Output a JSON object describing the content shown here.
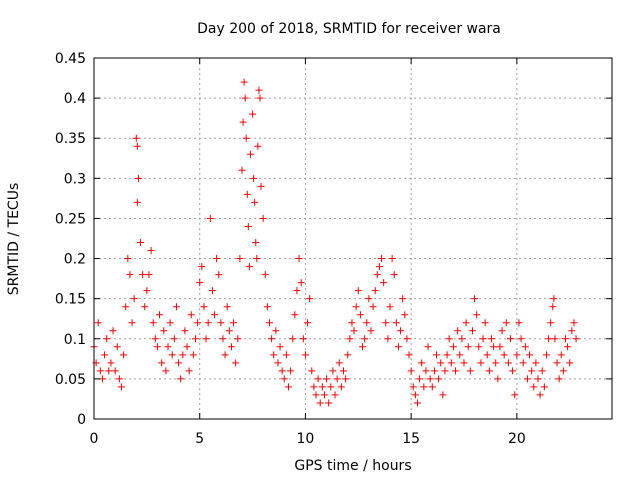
{
  "chart_data": {
    "type": "scatter",
    "title": "Day 200 of 2018, SRMTID for receiver wara",
    "xlabel": "GPS time / hours",
    "ylabel": "SRMTID / TECUs",
    "xlim": [
      0,
      24.5
    ],
    "ylim": [
      0,
      0.45
    ],
    "xticks": [
      0,
      5,
      10,
      15,
      20
    ],
    "xtick_labels": [
      "0",
      "5",
      "10",
      "15",
      "20"
    ],
    "yticks": [
      0,
      0.05,
      0.1,
      0.15,
      0.2,
      0.25,
      0.3,
      0.35,
      0.4,
      0.45
    ],
    "ytick_labels": [
      "0",
      "0.05",
      "0.1",
      "0.15",
      "0.2",
      "0.25",
      "0.3",
      "0.35",
      "0.4",
      "0.45"
    ],
    "grid": true,
    "marker": "plus",
    "color": "#ff0000",
    "series": [
      {
        "name": "SRMTID",
        "points": [
          [
            0.0,
            0.09
          ],
          [
            0.1,
            0.07
          ],
          [
            0.2,
            0.12
          ],
          [
            0.3,
            0.06
          ],
          [
            0.4,
            0.05
          ],
          [
            0.5,
            0.08
          ],
          [
            0.6,
            0.1
          ],
          [
            0.7,
            0.06
          ],
          [
            0.8,
            0.07
          ],
          [
            0.9,
            0.11
          ],
          [
            1.0,
            0.06
          ],
          [
            1.1,
            0.09
          ],
          [
            1.2,
            0.05
          ],
          [
            1.3,
            0.04
          ],
          [
            1.4,
            0.08
          ],
          [
            1.5,
            0.14
          ],
          [
            1.6,
            0.2
          ],
          [
            1.7,
            0.18
          ],
          [
            1.8,
            0.12
          ],
          [
            1.9,
            0.15
          ],
          [
            2.0,
            0.35
          ],
          [
            2.05,
            0.34
          ],
          [
            2.1,
            0.3
          ],
          [
            2.05,
            0.27
          ],
          [
            2.2,
            0.22
          ],
          [
            2.3,
            0.18
          ],
          [
            2.4,
            0.14
          ],
          [
            2.5,
            0.16
          ],
          [
            2.6,
            0.18
          ],
          [
            2.7,
            0.21
          ],
          [
            2.8,
            0.12
          ],
          [
            2.9,
            0.1
          ],
          [
            3.0,
            0.09
          ],
          [
            3.1,
            0.13
          ],
          [
            3.2,
            0.07
          ],
          [
            3.3,
            0.11
          ],
          [
            3.4,
            0.06
          ],
          [
            3.5,
            0.09
          ],
          [
            3.6,
            0.12
          ],
          [
            3.7,
            0.08
          ],
          [
            3.8,
            0.1
          ],
          [
            3.9,
            0.14
          ],
          [
            4.0,
            0.07
          ],
          [
            4.1,
            0.05
          ],
          [
            4.2,
            0.08
          ],
          [
            4.3,
            0.11
          ],
          [
            4.4,
            0.09
          ],
          [
            4.5,
            0.06
          ],
          [
            4.6,
            0.13
          ],
          [
            4.7,
            0.08
          ],
          [
            4.8,
            0.1
          ],
          [
            4.9,
            0.12
          ],
          [
            5.0,
            0.17
          ],
          [
            5.1,
            0.19
          ],
          [
            5.2,
            0.14
          ],
          [
            5.3,
            0.1
          ],
          [
            5.4,
            0.12
          ],
          [
            5.5,
            0.25
          ],
          [
            5.6,
            0.16
          ],
          [
            5.7,
            0.13
          ],
          [
            5.8,
            0.2
          ],
          [
            5.9,
            0.18
          ],
          [
            6.0,
            0.12
          ],
          [
            6.1,
            0.1
          ],
          [
            6.2,
            0.08
          ],
          [
            6.3,
            0.14
          ],
          [
            6.4,
            0.11
          ],
          [
            6.5,
            0.09
          ],
          [
            6.6,
            0.12
          ],
          [
            6.7,
            0.07
          ],
          [
            6.8,
            0.1
          ],
          [
            6.9,
            0.2
          ],
          [
            7.0,
            0.31
          ],
          [
            7.05,
            0.37
          ],
          [
            7.1,
            0.42
          ],
          [
            7.15,
            0.4
          ],
          [
            7.2,
            0.35
          ],
          [
            7.25,
            0.28
          ],
          [
            7.3,
            0.24
          ],
          [
            7.35,
            0.19
          ],
          [
            7.4,
            0.33
          ],
          [
            7.5,
            0.38
          ],
          [
            7.55,
            0.3
          ],
          [
            7.6,
            0.27
          ],
          [
            7.65,
            0.22
          ],
          [
            7.7,
            0.2
          ],
          [
            7.75,
            0.34
          ],
          [
            7.8,
            0.41
          ],
          [
            7.85,
            0.4
          ],
          [
            7.9,
            0.29
          ],
          [
            8.0,
            0.25
          ],
          [
            8.1,
            0.18
          ],
          [
            8.2,
            0.14
          ],
          [
            8.3,
            0.12
          ],
          [
            8.4,
            0.1
          ],
          [
            8.5,
            0.08
          ],
          [
            8.6,
            0.11
          ],
          [
            8.7,
            0.07
          ],
          [
            8.8,
            0.09
          ],
          [
            8.9,
            0.06
          ],
          [
            9.0,
            0.05
          ],
          [
            9.1,
            0.08
          ],
          [
            9.2,
            0.04
          ],
          [
            9.3,
            0.06
          ],
          [
            9.4,
            0.1
          ],
          [
            9.5,
            0.13
          ],
          [
            9.6,
            0.16
          ],
          [
            9.7,
            0.2
          ],
          [
            9.8,
            0.17
          ],
          [
            9.9,
            0.1
          ],
          [
            10.0,
            0.08
          ],
          [
            10.1,
            0.12
          ],
          [
            10.2,
            0.15
          ],
          [
            10.3,
            0.06
          ],
          [
            10.4,
            0.04
          ],
          [
            10.5,
            0.03
          ],
          [
            10.6,
            0.05
          ],
          [
            10.7,
            0.02
          ],
          [
            10.8,
            0.04
          ],
          [
            10.9,
            0.03
          ],
          [
            11.0,
            0.05
          ],
          [
            11.1,
            0.02
          ],
          [
            11.2,
            0.04
          ],
          [
            11.3,
            0.06
          ],
          [
            11.4,
            0.03
          ],
          [
            11.5,
            0.05
          ],
          [
            11.6,
            0.07
          ],
          [
            11.7,
            0.04
          ],
          [
            11.8,
            0.06
          ],
          [
            11.9,
            0.05
          ],
          [
            12.0,
            0.08
          ],
          [
            12.1,
            0.1
          ],
          [
            12.2,
            0.12
          ],
          [
            12.3,
            0.11
          ],
          [
            12.4,
            0.14
          ],
          [
            12.5,
            0.16
          ],
          [
            12.6,
            0.13
          ],
          [
            12.7,
            0.09
          ],
          [
            12.8,
            0.1
          ],
          [
            12.9,
            0.12
          ],
          [
            13.0,
            0.15
          ],
          [
            13.1,
            0.11
          ],
          [
            13.2,
            0.14
          ],
          [
            13.3,
            0.16
          ],
          [
            13.4,
            0.18
          ],
          [
            13.5,
            0.19
          ],
          [
            13.6,
            0.2
          ],
          [
            13.7,
            0.17
          ],
          [
            13.8,
            0.12
          ],
          [
            13.9,
            0.1
          ],
          [
            14.0,
            0.14
          ],
          [
            14.1,
            0.2
          ],
          [
            14.2,
            0.18
          ],
          [
            14.3,
            0.12
          ],
          [
            14.4,
            0.09
          ],
          [
            14.5,
            0.11
          ],
          [
            14.6,
            0.15
          ],
          [
            14.7,
            0.13
          ],
          [
            14.8,
            0.1
          ],
          [
            14.9,
            0.08
          ],
          [
            15.0,
            0.06
          ],
          [
            15.1,
            0.04
          ],
          [
            15.2,
            0.03
          ],
          [
            15.3,
            0.02
          ],
          [
            15.4,
            0.05
          ],
          [
            15.5,
            0.07
          ],
          [
            15.6,
            0.04
          ],
          [
            15.7,
            0.06
          ],
          [
            15.8,
            0.09
          ],
          [
            15.9,
            0.05
          ],
          [
            16.0,
            0.04
          ],
          [
            16.1,
            0.06
          ],
          [
            16.2,
            0.08
          ],
          [
            16.3,
            0.05
          ],
          [
            16.4,
            0.07
          ],
          [
            16.5,
            0.03
          ],
          [
            16.6,
            0.06
          ],
          [
            16.7,
            0.08
          ],
          [
            16.8,
            0.1
          ],
          [
            16.9,
            0.07
          ],
          [
            17.0,
            0.09
          ],
          [
            17.1,
            0.06
          ],
          [
            17.2,
            0.11
          ],
          [
            17.3,
            0.08
          ],
          [
            17.4,
            0.1
          ],
          [
            17.5,
            0.07
          ],
          [
            17.6,
            0.12
          ],
          [
            17.7,
            0.09
          ],
          [
            17.8,
            0.06
          ],
          [
            17.9,
            0.11
          ],
          [
            18.0,
            0.15
          ],
          [
            18.1,
            0.13
          ],
          [
            18.2,
            0.09
          ],
          [
            18.3,
            0.07
          ],
          [
            18.4,
            0.1
          ],
          [
            18.5,
            0.12
          ],
          [
            18.6,
            0.08
          ],
          [
            18.7,
            0.06
          ],
          [
            18.8,
            0.1
          ],
          [
            18.9,
            0.09
          ],
          [
            19.0,
            0.07
          ],
          [
            19.1,
            0.05
          ],
          [
            19.2,
            0.09
          ],
          [
            19.3,
            0.11
          ],
          [
            19.4,
            0.08
          ],
          [
            19.5,
            0.12
          ],
          [
            19.6,
            0.07
          ],
          [
            19.7,
            0.1
          ],
          [
            19.8,
            0.06
          ],
          [
            19.9,
            0.03
          ],
          [
            20.0,
            0.08
          ],
          [
            20.1,
            0.12
          ],
          [
            20.2,
            0.1
          ],
          [
            20.3,
            0.07
          ],
          [
            20.4,
            0.09
          ],
          [
            20.5,
            0.05
          ],
          [
            20.6,
            0.08
          ],
          [
            20.7,
            0.06
          ],
          [
            20.8,
            0.04
          ],
          [
            20.9,
            0.07
          ],
          [
            21.0,
            0.05
          ],
          [
            21.1,
            0.03
          ],
          [
            21.2,
            0.06
          ],
          [
            21.3,
            0.04
          ],
          [
            21.4,
            0.08
          ],
          [
            21.5,
            0.1
          ],
          [
            21.6,
            0.12
          ],
          [
            21.7,
            0.14
          ],
          [
            21.75,
            0.15
          ],
          [
            21.8,
            0.1
          ],
          [
            21.9,
            0.07
          ],
          [
            22.0,
            0.05
          ],
          [
            22.1,
            0.08
          ],
          [
            22.2,
            0.06
          ],
          [
            22.3,
            0.1
          ],
          [
            22.4,
            0.09
          ],
          [
            22.5,
            0.07
          ],
          [
            22.6,
            0.11
          ],
          [
            22.7,
            0.12
          ],
          [
            22.8,
            0.1
          ]
        ]
      }
    ]
  }
}
